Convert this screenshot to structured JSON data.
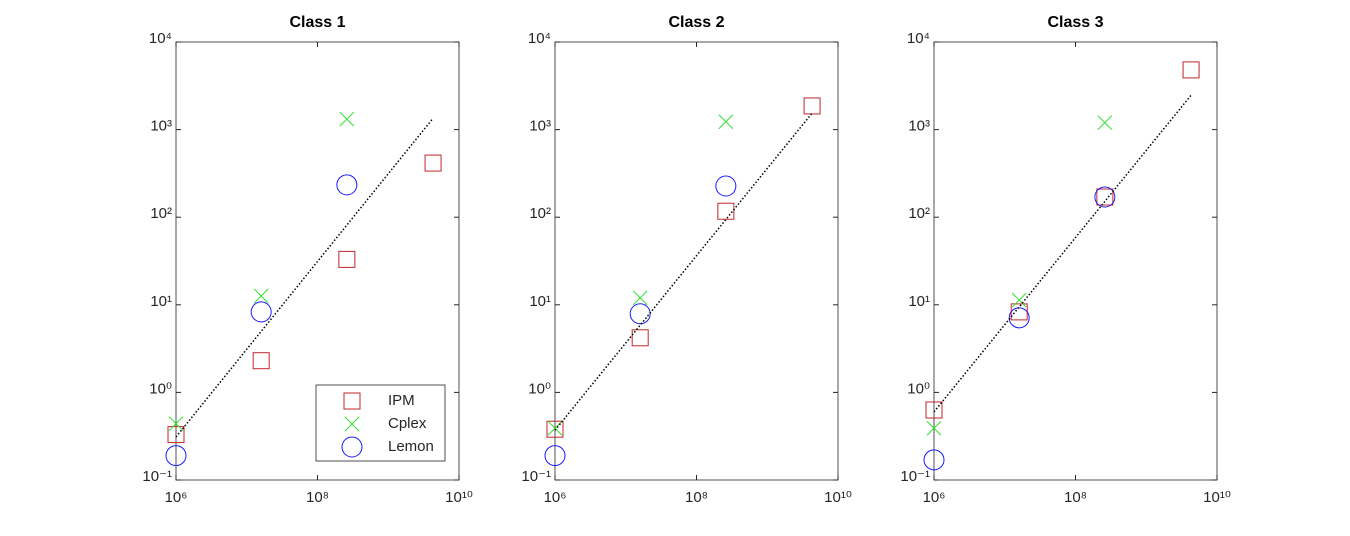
{
  "chart_data": [
    {
      "type": "scatter",
      "title": "Class 1",
      "xlog": true,
      "ylog": true,
      "legend": "lower right",
      "x": [
        1000000,
        16000000,
        260000000,
        4300000000
      ],
      "xlim": [
        1000000,
        10000000000
      ],
      "xticks": [
        {
          "value": 1000000,
          "label": "10⁶"
        },
        {
          "value": 100000000,
          "label": "10⁸"
        },
        {
          "value": 10000000000,
          "label": "10¹⁰"
        }
      ],
      "ylim": [
        0.1,
        10000
      ],
      "yticks": [
        {
          "value": 0.1,
          "label": "10⁻¹"
        },
        {
          "value": 1,
          "label": "10⁰"
        },
        {
          "value": 10,
          "label": "10¹"
        },
        {
          "value": 100,
          "label": "10²"
        },
        {
          "value": 1000,
          "label": "10³"
        },
        {
          "value": 10000,
          "label": "10⁴"
        }
      ],
      "series": [
        {
          "name": "IPM",
          "color": "#c0262b",
          "marker": "square",
          "values": [
            0.33,
            2.3,
            33,
            415
          ]
        },
        {
          "name": "Cplex",
          "color": "#33e033",
          "marker": "x",
          "values": [
            0.44,
            12.6,
            1318
          ]
        },
        {
          "name": "Lemon",
          "color": "#1a1aff",
          "marker": "circle",
          "values": [
            0.19,
            8.3,
            234
          ]
        },
        {
          "color": "#000000",
          "marker": "dotted-line",
          "x": [
            1000000,
            4300000000
          ],
          "values": [
            0.31,
            1350
          ]
        }
      ]
    },
    {
      "type": "scatter",
      "title": "Class 2",
      "xlog": true,
      "ylog": true,
      "x": [
        1000000,
        16000000,
        260000000,
        4300000000
      ],
      "xlim": [
        1000000,
        10000000000
      ],
      "xticks": [
        {
          "value": 1000000,
          "label": "10⁶"
        },
        {
          "value": 100000000,
          "label": "10⁸"
        },
        {
          "value": 10000000000,
          "label": "10¹⁰"
        }
      ],
      "ylim": [
        0.1,
        10000
      ],
      "yticks": [
        {
          "value": 0.1,
          "label": "10⁻¹"
        },
        {
          "value": 1,
          "label": "10⁰"
        },
        {
          "value": 10,
          "label": "10¹"
        },
        {
          "value": 100,
          "label": "10²"
        },
        {
          "value": 1000,
          "label": "10³"
        },
        {
          "value": 10000,
          "label": "10⁴"
        }
      ],
      "series": [
        {
          "name": "IPM",
          "color": "#c0262b",
          "marker": "square",
          "values": [
            0.38,
            4.2,
            117,
            1862
          ]
        },
        {
          "name": "Cplex",
          "color": "#33e033",
          "marker": "x",
          "values": [
            0.39,
            12,
            1230
          ]
        },
        {
          "name": "Lemon",
          "color": "#1a1aff",
          "marker": "circle",
          "values": [
            0.19,
            7.9,
            227
          ]
        },
        {
          "color": "#000000",
          "marker": "dotted-line",
          "x": [
            1000000,
            4300000000
          ],
          "values": [
            0.37,
            1540
          ]
        }
      ]
    },
    {
      "type": "scatter",
      "title": "Class 3",
      "xlog": true,
      "ylog": true,
      "x": [
        1000000,
        16000000,
        260000000,
        4300000000
      ],
      "xlim": [
        1000000,
        10000000000
      ],
      "xticks": [
        {
          "value": 1000000,
          "label": "10⁶"
        },
        {
          "value": 100000000,
          "label": "10⁸"
        },
        {
          "value": 10000000000,
          "label": "10¹⁰"
        }
      ],
      "ylim": [
        0.1,
        10000
      ],
      "yticks": [
        {
          "value": 0.1,
          "label": "10⁻¹"
        },
        {
          "value": 1,
          "label": "10⁰"
        },
        {
          "value": 10,
          "label": "10¹"
        },
        {
          "value": 100,
          "label": "10²"
        },
        {
          "value": 1000,
          "label": "10³"
        },
        {
          "value": 10000,
          "label": "10⁴"
        }
      ],
      "series": [
        {
          "name": "IPM",
          "color": "#c0262b",
          "marker": "square",
          "values": [
            0.63,
            8.3,
            170,
            4800
          ]
        },
        {
          "name": "Cplex",
          "color": "#33e033",
          "marker": "x",
          "values": [
            0.39,
            11.3,
            1200
          ]
        },
        {
          "name": "Lemon",
          "color": "#1a1aff",
          "marker": "circle",
          "values": [
            0.17,
            7.1,
            170
          ]
        },
        {
          "color": "#000000",
          "marker": "dotted-line",
          "x": [
            1000000,
            4300000000
          ],
          "values": [
            0.6,
            2470
          ]
        }
      ]
    }
  ]
}
